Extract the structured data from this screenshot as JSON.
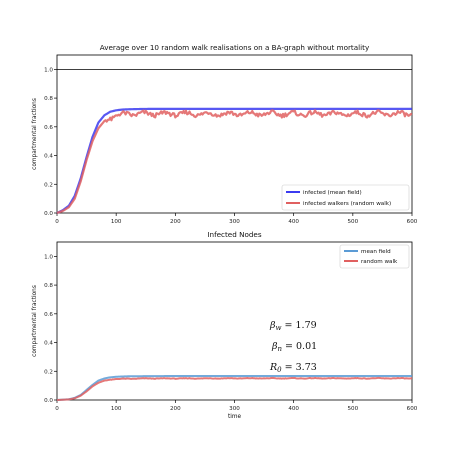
{
  "colors": {
    "blue": "#3b3bf0",
    "red": "#e06060",
    "steelblue": "#5b9bd5",
    "red2": "#e06060"
  },
  "chart_data": [
    {
      "type": "line",
      "title": "Average over 10 random walk realisations on a BA-graph without mortality",
      "xlabel": "",
      "ylabel": "compartmental fractions",
      "xlim": [
        0,
        600
      ],
      "ylim": [
        0,
        1.1
      ],
      "xticks": [
        "0",
        "100",
        "200",
        "300",
        "400",
        "500",
        "600"
      ],
      "yticks": [
        "0.0",
        "0.2",
        "0.4",
        "0.6",
        "0.8",
        "1.0"
      ],
      "hline": 1.0,
      "legend_position": "lower-right",
      "series": [
        {
          "name": "infected (mean field)",
          "color": "#3b3bf0",
          "x": [
            0,
            10,
            20,
            30,
            40,
            50,
            60,
            70,
            80,
            90,
            100,
            110,
            120,
            140,
            160,
            200,
            300,
            400,
            500,
            600
          ],
          "y": [
            0.0,
            0.02,
            0.05,
            0.12,
            0.24,
            0.39,
            0.53,
            0.63,
            0.68,
            0.705,
            0.715,
            0.72,
            0.722,
            0.724,
            0.725,
            0.725,
            0.725,
            0.725,
            0.725,
            0.725
          ]
        },
        {
          "name": "infected walkers  (random walk)",
          "color": "#e06060",
          "x": [
            0,
            10,
            20,
            30,
            40,
            50,
            60,
            70,
            80,
            90,
            100,
            120,
            140,
            160,
            200,
            300,
            400,
            500,
            600
          ],
          "y": [
            0.0,
            0.015,
            0.04,
            0.1,
            0.22,
            0.37,
            0.5,
            0.59,
            0.64,
            0.66,
            0.68,
            0.69,
            0.69,
            0.69,
            0.69,
            0.69,
            0.69,
            0.69,
            0.69
          ]
        }
      ]
    },
    {
      "type": "line",
      "title": "Infected Nodes",
      "xlabel": "time",
      "ylabel": "compartmental fractions",
      "xlim": [
        0,
        600
      ],
      "ylim": [
        0,
        1.1
      ],
      "xticks": [
        "0",
        "100",
        "200",
        "300",
        "400",
        "500",
        "600"
      ],
      "yticks": [
        "0.0",
        "0.2",
        "0.4",
        "0.6",
        "0.8",
        "1.0"
      ],
      "legend_position": "top-right",
      "annotations": [
        "β_w = 1.79",
        "β_n = 0.01",
        "R_0 = 3.73"
      ],
      "series": [
        {
          "name": "mean field",
          "color": "#5b9bd5",
          "x": [
            0,
            20,
            30,
            40,
            50,
            60,
            70,
            80,
            90,
            100,
            120,
            150,
            200,
            300,
            400,
            500,
            600
          ],
          "y": [
            0.0,
            0.005,
            0.015,
            0.035,
            0.07,
            0.105,
            0.135,
            0.15,
            0.158,
            0.162,
            0.165,
            0.166,
            0.167,
            0.167,
            0.167,
            0.167,
            0.167
          ]
        },
        {
          "name": "random walk",
          "color": "#e06060",
          "x": [
            0,
            20,
            30,
            40,
            50,
            60,
            70,
            80,
            90,
            100,
            120,
            150,
            200,
            300,
            400,
            500,
            600
          ],
          "y": [
            0.0,
            0.004,
            0.012,
            0.03,
            0.06,
            0.095,
            0.12,
            0.135,
            0.142,
            0.146,
            0.148,
            0.15,
            0.15,
            0.151,
            0.151,
            0.151,
            0.151
          ]
        }
      ]
    }
  ]
}
